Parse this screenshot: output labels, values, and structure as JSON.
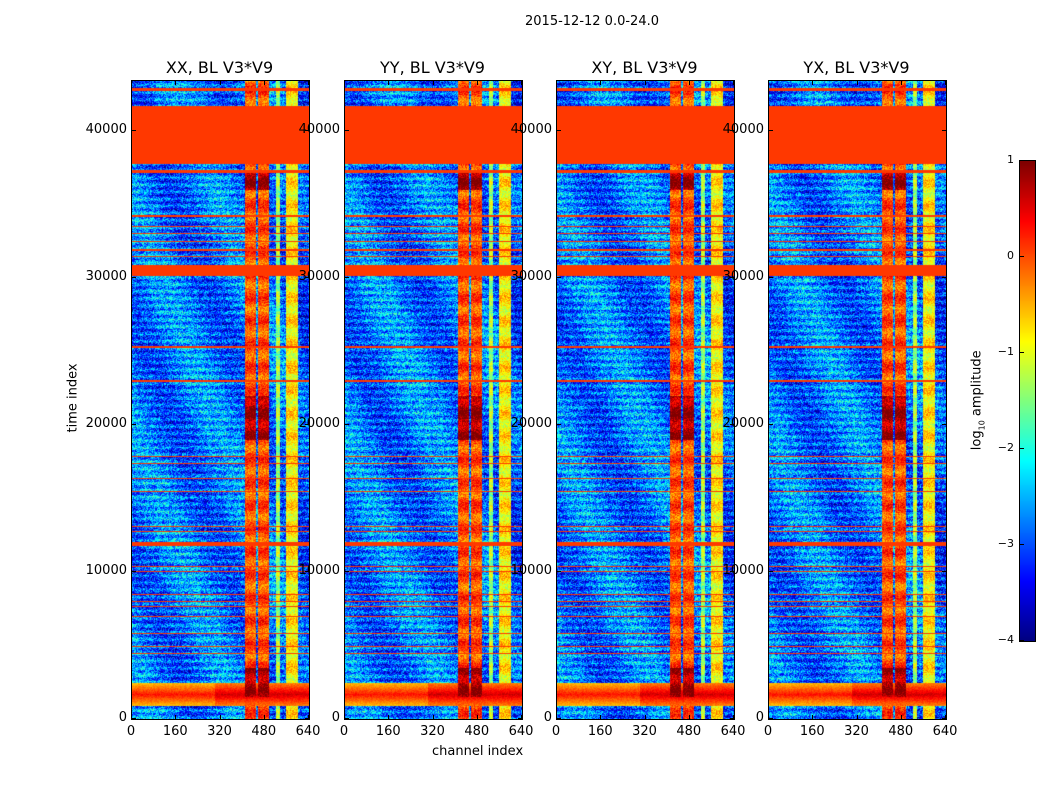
{
  "chart_data": {
    "type": "heatmap",
    "title": "2015-12-12 0.0-24.0",
    "xlabel": "channel index",
    "ylabel": "time index",
    "xlim": [
      0,
      640
    ],
    "ylim": [
      0,
      43400
    ],
    "xticks": [
      0,
      160,
      320,
      480,
      640
    ],
    "yticks": [
      0,
      10000,
      20000,
      30000,
      40000
    ],
    "panels": [
      {
        "title": "XX, BL V3*V9"
      },
      {
        "title": "YY, BL V3*V9"
      },
      {
        "title": "XY, BL V3*V9"
      },
      {
        "title": "YX, BL V3*V9"
      }
    ],
    "colorbar": {
      "label": "log10 amplitude",
      "label_main": "log",
      "label_sub": "10",
      "label_rest": " amplitude",
      "range": [
        -4,
        1
      ],
      "ticks": [
        1,
        0,
        -1,
        -2,
        -3,
        -4
      ],
      "tick_labels": [
        "1",
        "0",
        "−1",
        "−2",
        "−3",
        "−4"
      ],
      "colormap": "jet"
    },
    "flagged_value": 0.1,
    "background_value": -2.8,
    "flagged_time_ranges": [
      [
        42750,
        42950
      ],
      [
        37820,
        41700
      ],
      [
        37200,
        37350
      ],
      [
        34150,
        34300
      ],
      [
        33480,
        33600
      ],
      [
        33000,
        33120
      ],
      [
        32450,
        32580
      ],
      [
        31900,
        32030
      ],
      [
        31430,
        31560
      ],
      [
        30140,
        30950
      ],
      [
        25300,
        25430
      ],
      [
        22950,
        23070
      ],
      [
        17830,
        17950
      ],
      [
        17350,
        17470
      ],
      [
        16330,
        16450
      ],
      [
        15450,
        15570
      ],
      [
        13070,
        13190
      ],
      [
        12730,
        12850
      ],
      [
        11770,
        12100
      ],
      [
        10350,
        10470
      ],
      [
        10010,
        10130
      ],
      [
        8440,
        8560
      ],
      [
        7970,
        8090
      ],
      [
        7630,
        7750
      ],
      [
        6950,
        7070
      ],
      [
        5790,
        5910
      ],
      [
        4910,
        5030
      ],
      [
        4430,
        4550
      ]
    ],
    "rfi_time_ranges": [
      [
        900,
        2500
      ]
    ],
    "bright_channel_ranges": [
      {
        "range": [
          405,
          445
        ],
        "value": 0.0
      },
      {
        "range": [
          455,
          495
        ],
        "value": 0.0
      },
      {
        "range": [
          520,
          535
        ],
        "value": -1.3
      },
      {
        "range": [
          555,
          600
        ],
        "value": -0.8
      }
    ],
    "saturated_time_ranges": [
      [
        36000,
        37300
      ],
      [
        19000,
        22000
      ],
      [
        1500,
        3500
      ]
    ]
  }
}
